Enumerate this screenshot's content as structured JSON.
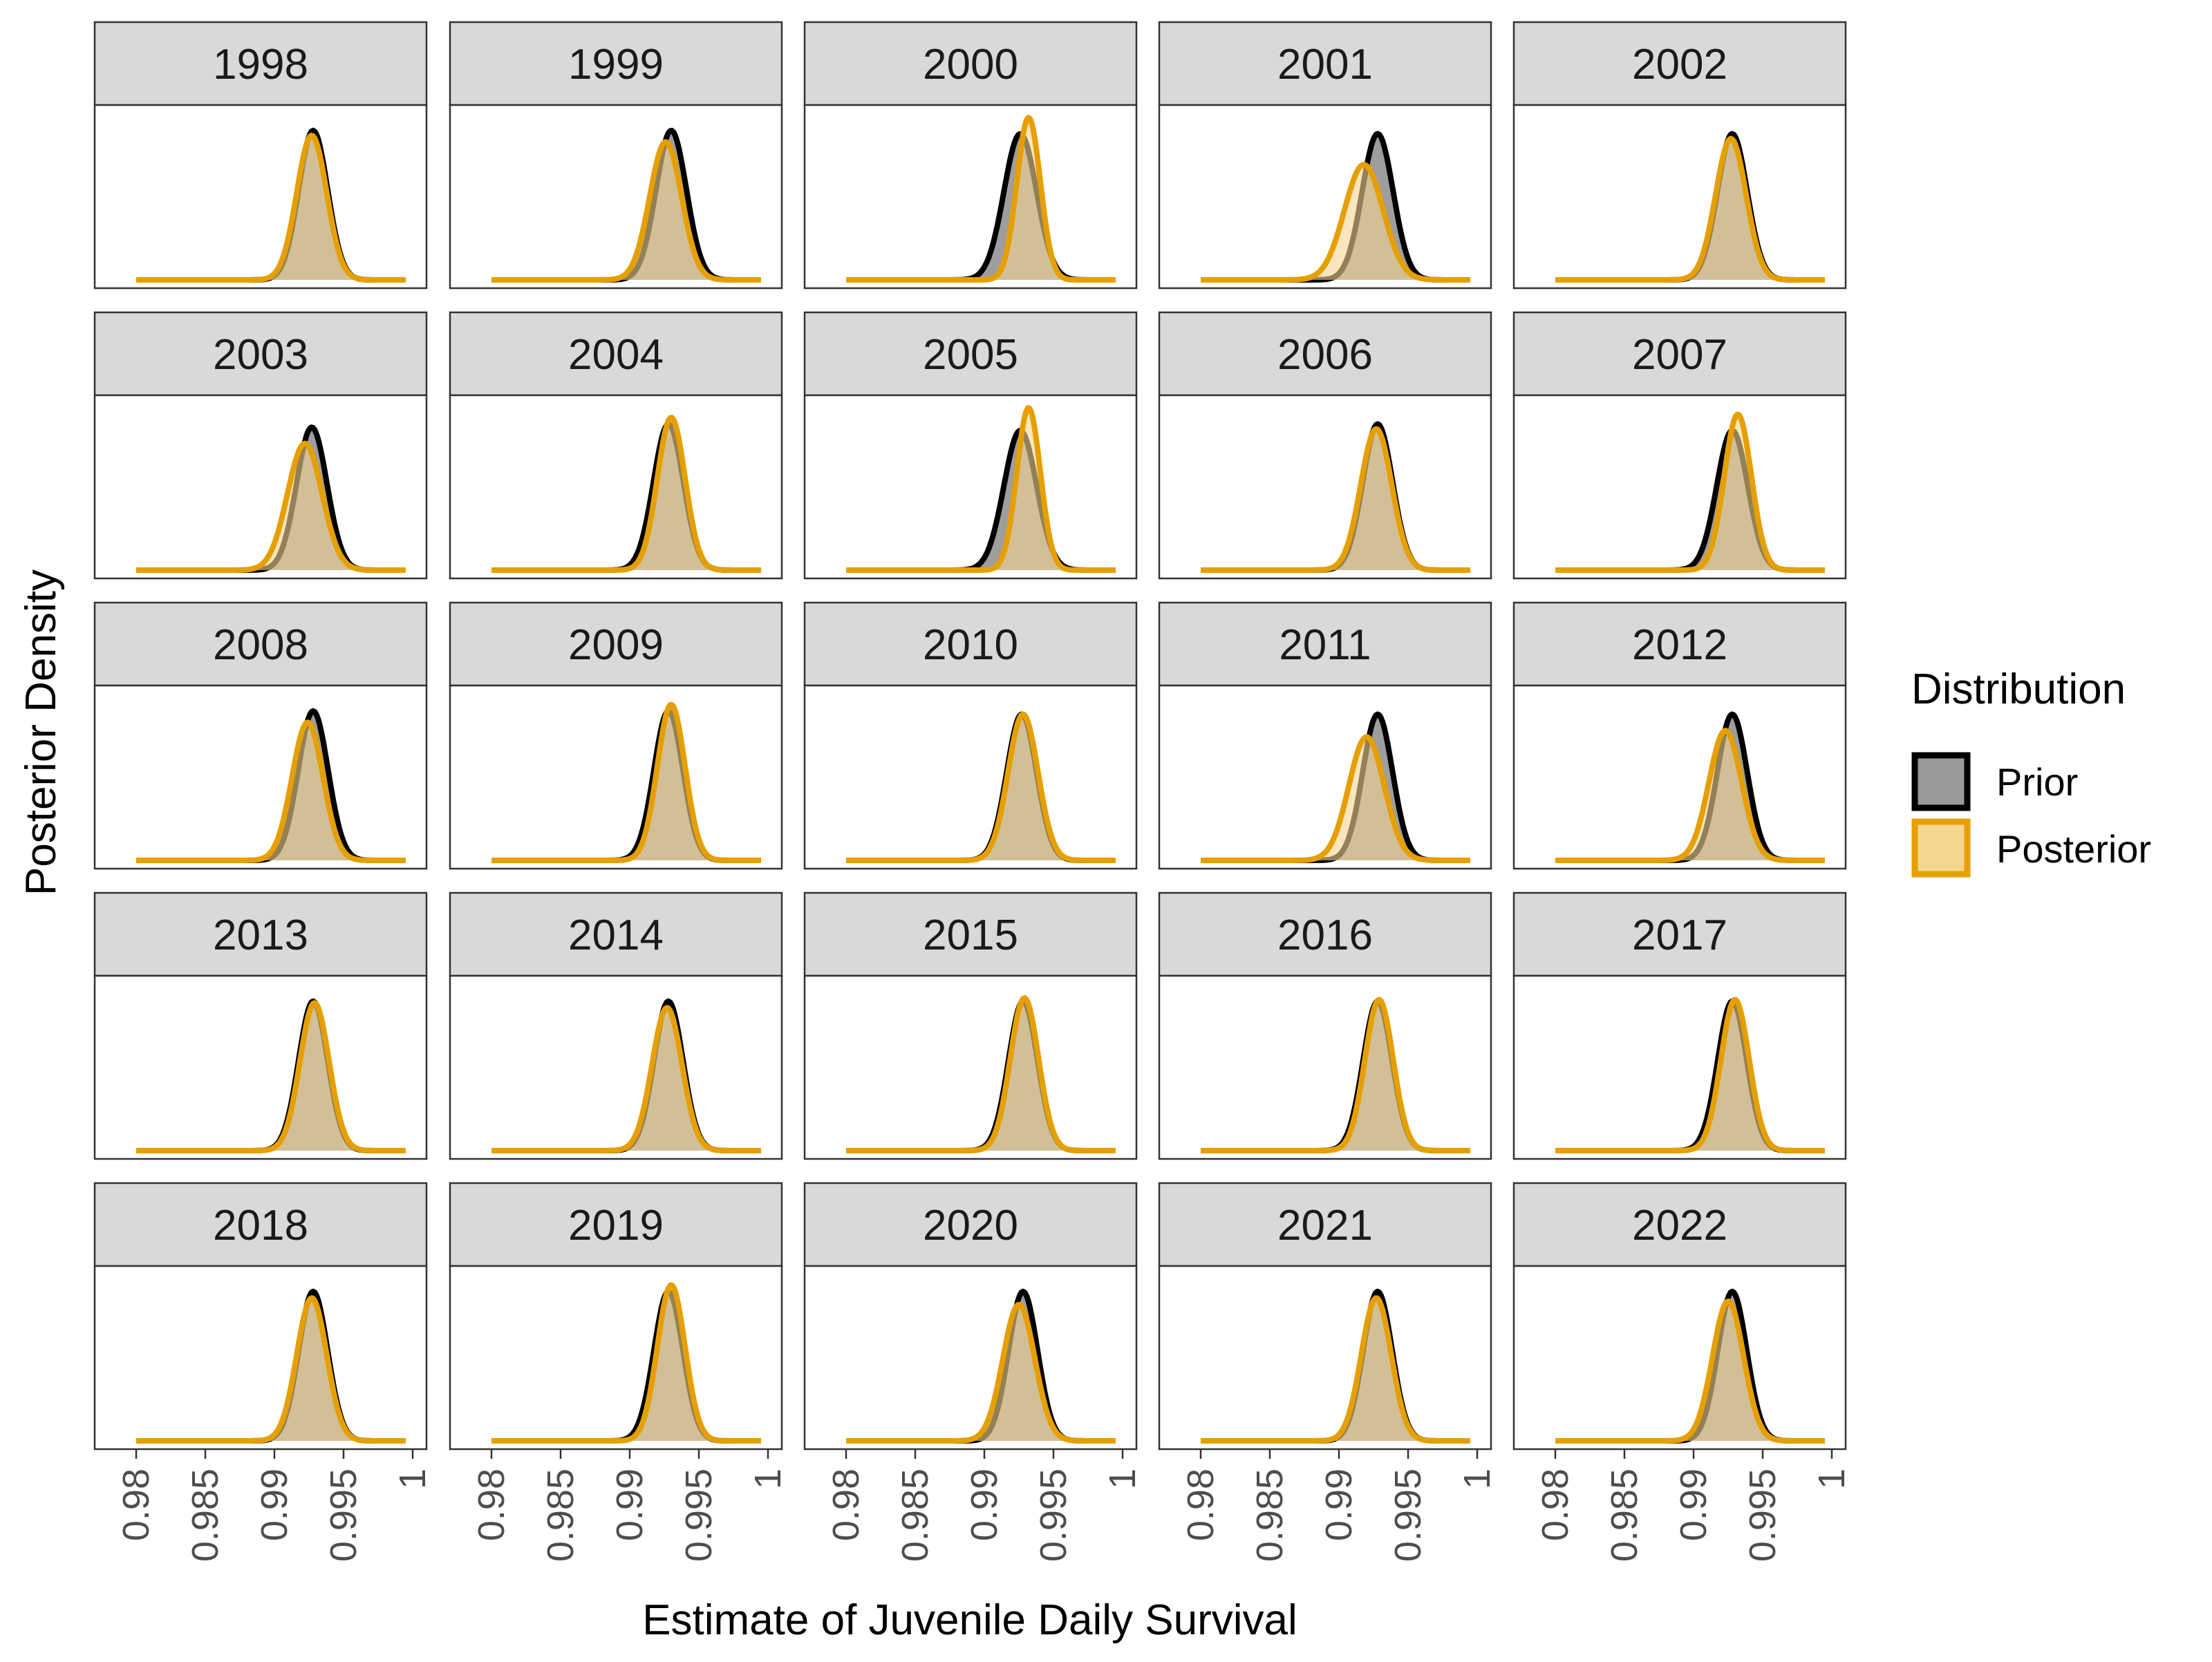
{
  "chart_data": {
    "type": "area",
    "facet_by": "year",
    "xlabel": "Estimate of Juvenile Daily Survival",
    "ylabel": "Posterior Density",
    "xlim": [
      0.978,
      1.0
    ],
    "x_ticks": [
      0.98,
      0.985,
      0.99,
      0.995,
      1
    ],
    "x_tick_labels": [
      "0.98",
      "0.985",
      "0.99",
      "0.995",
      "1"
    ],
    "y_ticks_shown": false,
    "grid": false,
    "legend": {
      "title": "Distribution",
      "position": "right",
      "entries": [
        {
          "label": "Prior",
          "fill": "#999999",
          "stroke": "#000000"
        },
        {
          "label": "Posterior",
          "fill": "#F5D690",
          "stroke": "#E69F00"
        }
      ]
    },
    "density_note": "Each panel shows approximate normal density curves; values give the peak location (mode) and spread (sd) in survival units, and the peak height relative to the panel maximum.",
    "panels": [
      {
        "year": "1998",
        "prior": {
          "mode": 0.9928,
          "sd": 0.00105,
          "peak": 0.92
        },
        "posterior": {
          "mode": 0.9927,
          "sd": 0.00108,
          "peak": 0.89
        }
      },
      {
        "year": "1999",
        "prior": {
          "mode": 0.993,
          "sd": 0.0011,
          "peak": 0.92
        },
        "posterior": {
          "mode": 0.9926,
          "sd": 0.00115,
          "peak": 0.85
        }
      },
      {
        "year": "2000",
        "prior": {
          "mode": 0.9926,
          "sd": 0.00118,
          "peak": 0.9
        },
        "posterior": {
          "mode": 0.9932,
          "sd": 0.00085,
          "peak": 1.0
        }
      },
      {
        "year": "2001",
        "prior": {
          "mode": 0.9928,
          "sd": 0.00112,
          "peak": 0.9
        },
        "posterior": {
          "mode": 0.9918,
          "sd": 0.0014,
          "peak": 0.71
        }
      },
      {
        "year": "2002",
        "prior": {
          "mode": 0.9928,
          "sd": 0.00108,
          "peak": 0.9
        },
        "posterior": {
          "mode": 0.9927,
          "sd": 0.0011,
          "peak": 0.87
        }
      },
      {
        "year": "2003",
        "prior": {
          "mode": 0.9927,
          "sd": 0.0011,
          "peak": 0.88
        },
        "posterior": {
          "mode": 0.9922,
          "sd": 0.00125,
          "peak": 0.78
        }
      },
      {
        "year": "2004",
        "prior": {
          "mode": 0.9928,
          "sd": 0.00108,
          "peak": 0.9
        },
        "posterior": {
          "mode": 0.993,
          "sd": 0.001,
          "peak": 0.94
        }
      },
      {
        "year": "2005",
        "prior": {
          "mode": 0.9926,
          "sd": 0.00118,
          "peak": 0.86
        },
        "posterior": {
          "mode": 0.9932,
          "sd": 0.00085,
          "peak": 1.0
        }
      },
      {
        "year": "2006",
        "prior": {
          "mode": 0.9928,
          "sd": 0.00108,
          "peak": 0.9
        },
        "posterior": {
          "mode": 0.9927,
          "sd": 0.00112,
          "peak": 0.87
        }
      },
      {
        "year": "2007",
        "prior": {
          "mode": 0.9928,
          "sd": 0.00112,
          "peak": 0.86
        },
        "posterior": {
          "mode": 0.9932,
          "sd": 0.00098,
          "peak": 0.96
        }
      },
      {
        "year": "2008",
        "prior": {
          "mode": 0.9928,
          "sd": 0.00108,
          "peak": 0.92
        },
        "posterior": {
          "mode": 0.9924,
          "sd": 0.00112,
          "peak": 0.85
        }
      },
      {
        "year": "2009",
        "prior": {
          "mode": 0.9928,
          "sd": 0.00105,
          "peak": 0.92
        },
        "posterior": {
          "mode": 0.993,
          "sd": 0.001,
          "peak": 0.96
        }
      },
      {
        "year": "2010",
        "prior": {
          "mode": 0.9927,
          "sd": 0.00108,
          "peak": 0.9
        },
        "posterior": {
          "mode": 0.9928,
          "sd": 0.00108,
          "peak": 0.9
        }
      },
      {
        "year": "2011",
        "prior": {
          "mode": 0.9928,
          "sd": 0.00108,
          "peak": 0.9
        },
        "posterior": {
          "mode": 0.992,
          "sd": 0.00128,
          "peak": 0.76
        }
      },
      {
        "year": "2012",
        "prior": {
          "mode": 0.9928,
          "sd": 0.00108,
          "peak": 0.9
        },
        "posterior": {
          "mode": 0.9923,
          "sd": 0.00118,
          "peak": 0.8
        }
      },
      {
        "year": "2013",
        "prior": {
          "mode": 0.9928,
          "sd": 0.00105,
          "peak": 0.92
        },
        "posterior": {
          "mode": 0.9929,
          "sd": 0.00105,
          "peak": 0.91
        }
      },
      {
        "year": "2014",
        "prior": {
          "mode": 0.9928,
          "sd": 0.00105,
          "peak": 0.92
        },
        "posterior": {
          "mode": 0.9927,
          "sd": 0.00108,
          "peak": 0.88
        }
      },
      {
        "year": "2015",
        "prior": {
          "mode": 0.9928,
          "sd": 0.00105,
          "peak": 0.92
        },
        "posterior": {
          "mode": 0.9929,
          "sd": 0.00102,
          "peak": 0.94
        }
      },
      {
        "year": "2016",
        "prior": {
          "mode": 0.9928,
          "sd": 0.00105,
          "peak": 0.92
        },
        "posterior": {
          "mode": 0.9929,
          "sd": 0.00102,
          "peak": 0.93
        }
      },
      {
        "year": "2017",
        "prior": {
          "mode": 0.9928,
          "sd": 0.00105,
          "peak": 0.92
        },
        "posterior": {
          "mode": 0.993,
          "sd": 0.00102,
          "peak": 0.93
        }
      },
      {
        "year": "2018",
        "prior": {
          "mode": 0.9928,
          "sd": 0.00105,
          "peak": 0.92
        },
        "posterior": {
          "mode": 0.9927,
          "sd": 0.00108,
          "peak": 0.88
        }
      },
      {
        "year": "2019",
        "prior": {
          "mode": 0.9928,
          "sd": 0.00105,
          "peak": 0.92
        },
        "posterior": {
          "mode": 0.993,
          "sd": 0.001,
          "peak": 0.96
        }
      },
      {
        "year": "2020",
        "prior": {
          "mode": 0.9928,
          "sd": 0.00105,
          "peak": 0.92
        },
        "posterior": {
          "mode": 0.9925,
          "sd": 0.00115,
          "peak": 0.84
        }
      },
      {
        "year": "2021",
        "prior": {
          "mode": 0.9928,
          "sd": 0.00105,
          "peak": 0.92
        },
        "posterior": {
          "mode": 0.9927,
          "sd": 0.00108,
          "peak": 0.88
        }
      },
      {
        "year": "2022",
        "prior": {
          "mode": 0.9928,
          "sd": 0.00105,
          "peak": 0.92
        },
        "posterior": {
          "mode": 0.9925,
          "sd": 0.00112,
          "peak": 0.86
        }
      }
    ]
  }
}
